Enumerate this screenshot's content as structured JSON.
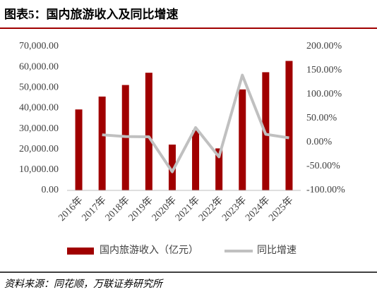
{
  "chart_data": {
    "type": "bar_line",
    "title": "图表5：国内旅游收入及同比增速",
    "source": "资料来源：同花顺，万联证券研究所",
    "categories": [
      "2016年",
      "2017年",
      "2018年",
      "2019年",
      "2020年",
      "2021年",
      "2022年",
      "2023年",
      "2024年",
      "2025年"
    ],
    "series": [
      {
        "name": "国内旅游收入（亿元）",
        "type": "bar",
        "color": "#a00000",
        "values": [
          39390,
          45661,
          51278,
          57251,
          22286,
          29191,
          20444,
          49133,
          57500,
          63000
        ]
      },
      {
        "name": "同比增速",
        "type": "line",
        "axis": "y2",
        "color": "#c0c0c0",
        "values": [
          null,
          15.9,
          12.3,
          11.7,
          -61.1,
          31.0,
          -30.0,
          140.3,
          17.1,
          9.6
        ]
      }
    ],
    "ylim": [
      0,
      70000
    ],
    "yticks": [
      {
        "value": 0,
        "label": "0.00"
      },
      {
        "value": 10000,
        "label": "10,000.00"
      },
      {
        "value": 20000,
        "label": "20,000.00"
      },
      {
        "value": 30000,
        "label": "30,000.00"
      },
      {
        "value": 40000,
        "label": "40,000.00"
      },
      {
        "value": 50000,
        "label": "50,000.00"
      },
      {
        "value": 60000,
        "label": "60,000.00"
      },
      {
        "value": 70000,
        "label": "70,000.00"
      }
    ],
    "y2lim": [
      -100,
      200
    ],
    "y2ticks": [
      {
        "value": -100,
        "label": "-100.00%"
      },
      {
        "value": -50,
        "label": "-50.00%"
      },
      {
        "value": 0,
        "label": "0.00%"
      },
      {
        "value": 50,
        "label": "50.00%"
      },
      {
        "value": 100,
        "label": "100.00%"
      },
      {
        "value": 150,
        "label": "150.00%"
      },
      {
        "value": 200,
        "label": "200.00%"
      }
    ]
  }
}
